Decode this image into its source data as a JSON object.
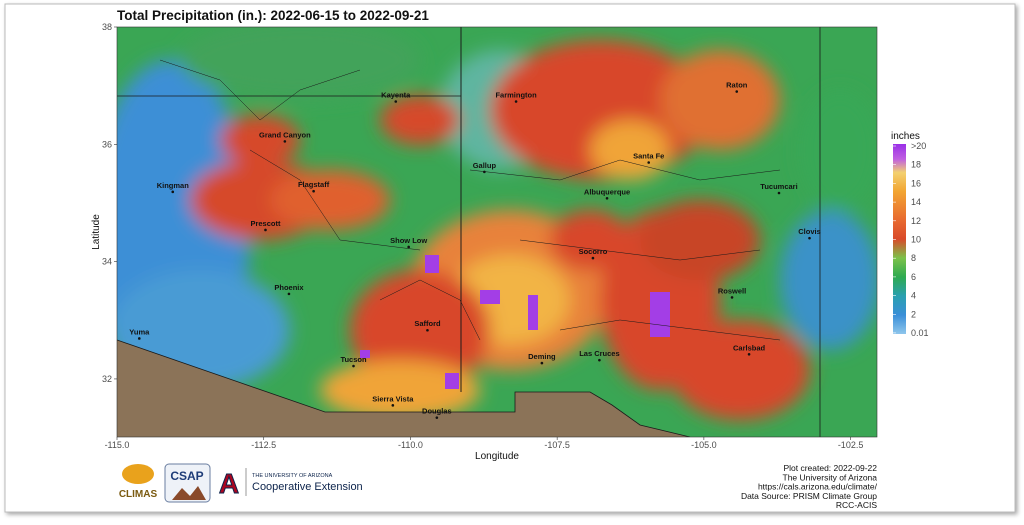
{
  "map": {
    "title": "Total Precipitation (in.): 2022-06-15 to 2022-09-21",
    "xlabel": "Longitude",
    "ylabel": "Latitude",
    "xlim": [
      -115,
      -102.05
    ],
    "ylim": [
      31.01,
      38
    ],
    "xticks": [
      {
        "value": -115,
        "label": "-115.0"
      },
      {
        "value": -112.5,
        "label": "-112.5"
      },
      {
        "value": -110,
        "label": "-110.0"
      },
      {
        "value": -107.5,
        "label": "-107.5"
      },
      {
        "value": -105,
        "label": "-105.0"
      },
      {
        "value": -102.5,
        "label": "-102.5"
      }
    ],
    "yticks": [
      32,
      34,
      36,
      38
    ],
    "cities": [
      {
        "name": "Farmington",
        "lon": -108.2,
        "lat": 36.73
      },
      {
        "name": "Kayenta",
        "lon": -110.25,
        "lat": 36.73
      },
      {
        "name": "Grand Canyon",
        "lon": -112.14,
        "lat": 36.05
      },
      {
        "name": "Raton",
        "lon": -104.44,
        "lat": 36.9
      },
      {
        "name": "Santa Fe",
        "lon": -105.94,
        "lat": 35.69
      },
      {
        "name": "Gallup",
        "lon": -108.74,
        "lat": 35.53
      },
      {
        "name": "Kingman",
        "lon": -114.05,
        "lat": 35.19
      },
      {
        "name": "Flagstaff",
        "lon": -111.65,
        "lat": 35.2
      },
      {
        "name": "Albuquerque",
        "lon": -106.65,
        "lat": 35.08
      },
      {
        "name": "Tucumcari",
        "lon": -103.72,
        "lat": 35.17
      },
      {
        "name": "Prescott",
        "lon": -112.47,
        "lat": 34.54
      },
      {
        "name": "Show Low",
        "lon": -110.03,
        "lat": 34.25
      },
      {
        "name": "Clovis",
        "lon": -103.2,
        "lat": 34.4
      },
      {
        "name": "Socorro",
        "lon": -106.89,
        "lat": 34.06
      },
      {
        "name": "Phoenix",
        "lon": -112.07,
        "lat": 33.45
      },
      {
        "name": "Roswell",
        "lon": -104.52,
        "lat": 33.39
      },
      {
        "name": "Safford",
        "lon": -109.71,
        "lat": 32.83
      },
      {
        "name": "Yuma",
        "lon": -114.62,
        "lat": 32.69
      },
      {
        "name": "Carlsbad",
        "lon": -104.23,
        "lat": 32.42
      },
      {
        "name": "Tucson",
        "lon": -110.97,
        "lat": 32.22
      },
      {
        "name": "Deming",
        "lon": -107.76,
        "lat": 32.27
      },
      {
        "name": "Las Cruces",
        "lon": -106.78,
        "lat": 32.32
      },
      {
        "name": "Sierra Vista",
        "lon": -110.3,
        "lat": 31.55
      },
      {
        "name": "Douglas",
        "lon": -109.55,
        "lat": 31.34
      }
    ],
    "legend": {
      "title": "inches",
      "lim": [
        0,
        20
      ],
      "ticks": [
        {
          "value": 0.01,
          "label": "0.01"
        },
        2,
        4,
        6,
        8,
        10,
        12,
        14,
        16,
        18,
        {
          "value": 20,
          "label": ">20"
        }
      ]
    }
  },
  "logos": {
    "climas": "CLIMAS",
    "csap": "CSAP",
    "ua_letter": "A",
    "ua_name": "THE UNIVERSITY OF ARIZONA",
    "extension": "Cooperative Extension"
  },
  "credits": [
    "Plot created: 2022-09-22",
    "The University of Arizona",
    "https://cals.arizona.edu/climate/",
    "Data Source: PRISM Climate Group",
    "RCC-ACIS"
  ]
}
